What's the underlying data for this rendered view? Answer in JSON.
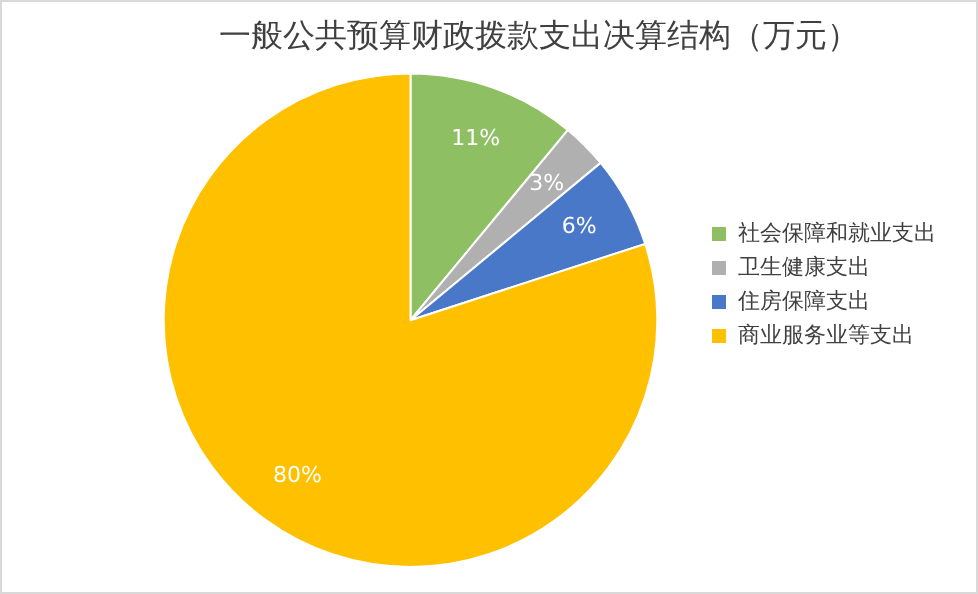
{
  "chart_data": {
    "type": "pie",
    "title": "一般公共预算财政拨款支出决算结构（万元）",
    "categories": [
      "社会保障和就业支出",
      "卫生健康支出",
      "住房保障支出",
      "商业服务业等支出"
    ],
    "values": [
      11,
      3,
      6,
      80
    ],
    "value_labels": [
      "11%",
      "3%",
      "6%",
      "80%"
    ],
    "colors": [
      "#8fbf63",
      "#b0b0b0",
      "#4a78c8",
      "#ffc000"
    ],
    "legend": "right"
  }
}
